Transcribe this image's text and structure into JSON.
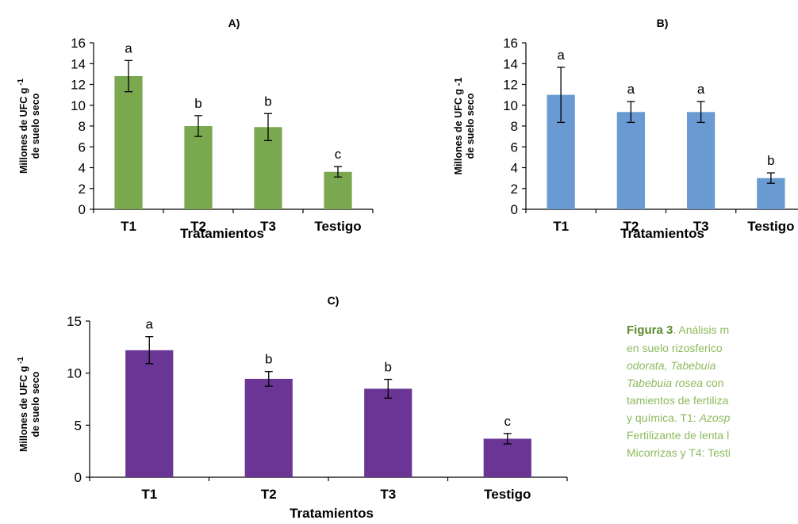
{
  "chart_data": [
    {
      "type": "bar",
      "title": "A)",
      "ylabel_line1": "Millones de UFC g",
      "ylabel_sup": "-1",
      "ylabel_line2": "de suelo seco",
      "xlabel": "Tratamientos",
      "categories": [
        "T1",
        "T2",
        "T3",
        "Testigo"
      ],
      "values": [
        12.8,
        8.0,
        7.9,
        3.6
      ],
      "errors": [
        1.5,
        1.0,
        1.3,
        0.5
      ],
      "letters": [
        "a",
        "b",
        "b",
        "c"
      ],
      "ylim": [
        0,
        16
      ],
      "yticks": [
        "0",
        "2",
        "4",
        "6",
        "8",
        "10",
        "12",
        "14",
        "16"
      ],
      "color": "#7aa84e",
      "grid": false
    },
    {
      "type": "bar",
      "title": "B)",
      "ylabel_line1": "Millones de UFC g -1",
      "ylabel_sup": "",
      "ylabel_line2": "de suelo seco",
      "xlabel": "Tratamientos",
      "categories": [
        "T1",
        "T2",
        "T3",
        "Testigo"
      ],
      "values": [
        11.0,
        9.35,
        9.35,
        3.0
      ],
      "errors": [
        2.65,
        1.0,
        1.0,
        0.5
      ],
      "letters": [
        "a",
        "a",
        "a",
        "b"
      ],
      "ylim": [
        0,
        16
      ],
      "yticks": [
        "0",
        "2",
        "4",
        "6",
        "8",
        "10",
        "12",
        "14",
        "16"
      ],
      "color": "#699bd2",
      "grid": false
    },
    {
      "type": "bar",
      "title": "C)",
      "ylabel_line1": "Millones de UFC g",
      "ylabel_sup": "-1",
      "ylabel_line2": "de suelo seco",
      "xlabel": "Tratamientos",
      "categories": [
        "T1",
        "T2",
        "T3",
        "Testigo"
      ],
      "values": [
        12.2,
        9.45,
        8.5,
        3.7
      ],
      "errors": [
        1.3,
        0.7,
        0.9,
        0.5
      ],
      "letters": [
        "a",
        "b",
        "b",
        "c"
      ],
      "ylim": [
        0,
        15
      ],
      "yticks": [
        "0",
        "5",
        "10",
        "15"
      ],
      "color": "#6a3594",
      "grid": false
    }
  ],
  "caption": {
    "line1_label": "Figura 3",
    "line1_rest": ". Análisis m",
    "line2": "en suelo rizosferico",
    "line3": "odorata,  Tabebuia",
    "line4_italic": "Tabebuia rosea",
    "line4_rest": " con",
    "line5": "tamientos de fertiliza",
    "line6_pre": "y química. T1: ",
    "line6_italic": "Azosp",
    "line7": "Fertilizante de lenta l",
    "line8": "Micorrizas y T4: Testi"
  }
}
